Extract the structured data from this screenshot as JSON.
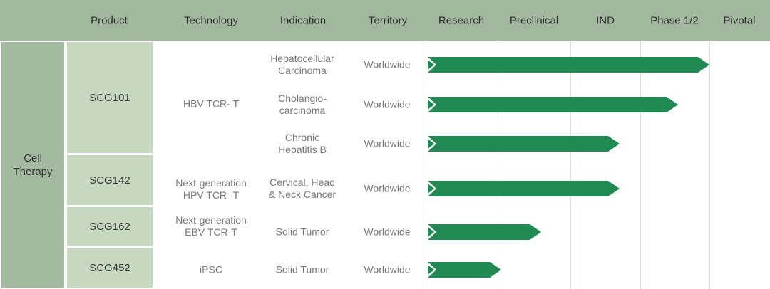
{
  "header": {
    "columns": [
      "Product",
      "Technology",
      "Indication",
      "Territory"
    ],
    "stages": [
      "Research",
      "Preclinical",
      "IND",
      "Phase 1/2",
      "Pivotal"
    ]
  },
  "group": {
    "label": "Cell Therapy"
  },
  "colors": {
    "header_band": "#a2b89e",
    "group_cell": "#a3baa0",
    "product_cell": "#c7d8c1",
    "arrow": "#218a52",
    "gridline": "#d9e4d4"
  },
  "chart_data": {
    "type": "bar",
    "subtype": "pipeline-gantt",
    "group": "Cell Therapy",
    "stage_axis": [
      "Research",
      "Preclinical",
      "IND",
      "Phase 1/2",
      "Pivotal"
    ],
    "legend": "none",
    "rows": [
      {
        "product": "SCG101",
        "technology_lines": [
          "HBV TCR- T"
        ],
        "programs": [
          {
            "indication_lines": [
              "Hepatocellular",
              "Carcinoma"
            ],
            "territory": "Worldwide",
            "stage_reached": "Phase 1/2",
            "stage_progress": 4.0
          },
          {
            "indication_lines": [
              "Cholangio-",
              "carcinoma"
            ],
            "territory": "Worldwide",
            "stage_reached": "Phase 1/2",
            "stage_progress": 3.55
          },
          {
            "indication_lines": [
              "Chronic",
              "Hepatitis B"
            ],
            "territory": "Worldwide",
            "stage_reached": "IND",
            "stage_progress": 2.7
          }
        ]
      },
      {
        "product": "SCG142",
        "technology_lines": [
          "Next-generation",
          "HPV TCR -T"
        ],
        "programs": [
          {
            "indication_lines": [
              "Cervical, Head",
              "& Neck Cancer"
            ],
            "territory": "Worldwide",
            "stage_reached": "IND",
            "stage_progress": 2.7
          }
        ]
      },
      {
        "product": "SCG162",
        "technology_lines": [
          "Next-generation",
          "EBV TCR-T"
        ],
        "programs": [
          {
            "indication_lines": [
              "Solid Tumor"
            ],
            "territory": "Worldwide",
            "stage_reached": "Preclinical",
            "stage_progress": 1.6
          }
        ]
      },
      {
        "product": "SCG452",
        "technology_lines": [
          "iPSC"
        ],
        "programs": [
          {
            "indication_lines": [
              "Solid Tumor"
            ],
            "territory": "Worldwide",
            "stage_reached": "Preclinical",
            "stage_progress": 1.05
          }
        ]
      }
    ]
  }
}
